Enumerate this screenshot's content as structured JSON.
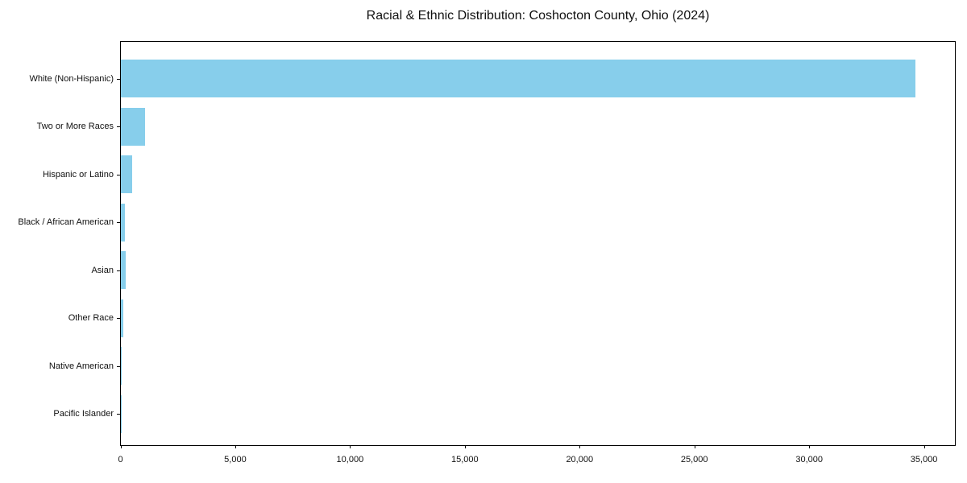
{
  "chart_data": {
    "type": "bar",
    "orientation": "horizontal",
    "title": "Racial & Ethnic Distribution: Coshocton County, Ohio (2024)",
    "xlabel": "",
    "ylabel": "",
    "categories": [
      "White (Non-Hispanic)",
      "Two or More Races",
      "Hispanic or Latino",
      "Black / African American",
      "Asian",
      "Other Race",
      "Native American",
      "Pacific Islander"
    ],
    "values": [
      34600,
      1060,
      480,
      185,
      210,
      110,
      20,
      5
    ],
    "xlim": [
      0,
      36330
    ],
    "x_ticks": [
      0,
      5000,
      10000,
      15000,
      20000,
      25000,
      30000,
      35000
    ],
    "x_tick_labels": [
      "0",
      "5,000",
      "10,000",
      "15,000",
      "20,000",
      "25,000",
      "30,000",
      "35,000"
    ],
    "bar_color": "#87CEEB",
    "background_color": "#ffffff",
    "axis_color": "#000000",
    "grid": false,
    "legend": false
  }
}
